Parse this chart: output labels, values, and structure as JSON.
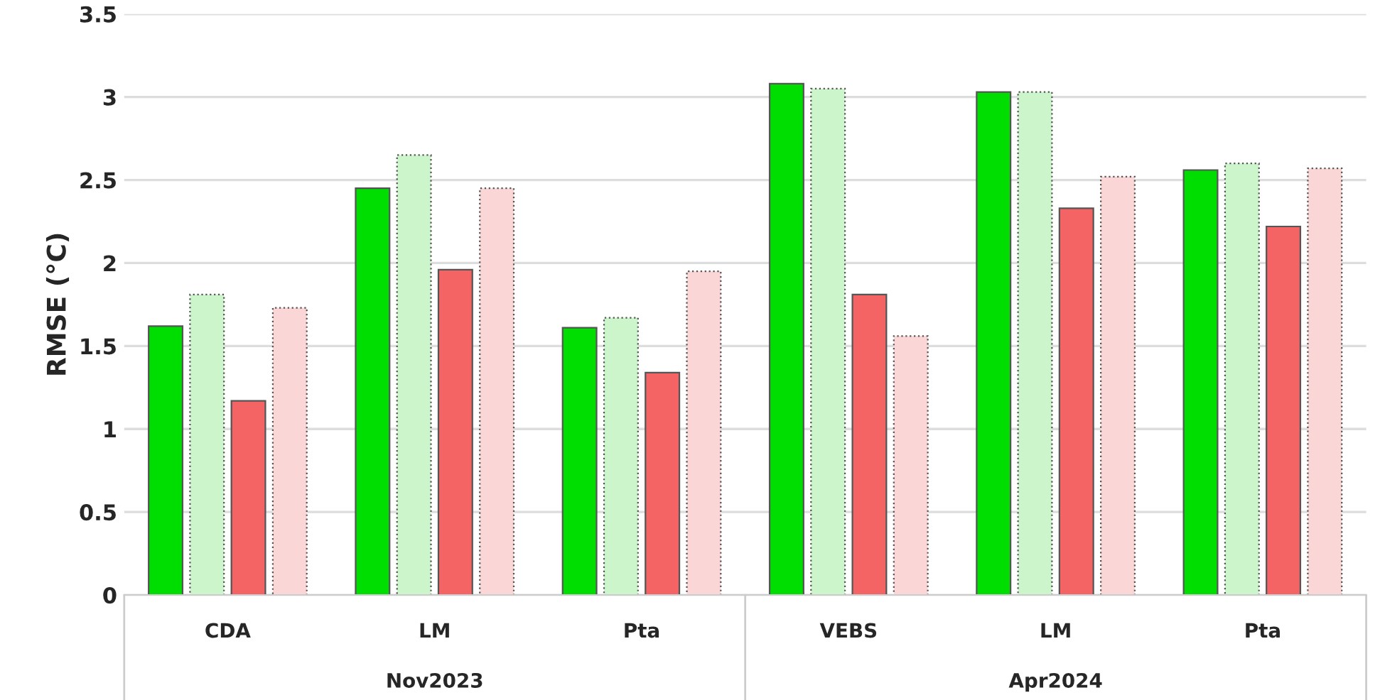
{
  "chart_data": {
    "type": "bar",
    "ylabel": "RMSE (°C)",
    "categories": [
      "CDA",
      "LM",
      "Pta",
      "VEBS",
      "LM",
      "Pta"
    ],
    "series": [
      {
        "color": "#00dd00",
        "values": [
          1.62,
          2.45,
          1.61,
          3.08,
          3.03,
          2.56
        ]
      },
      {
        "color": "#ccf5cc",
        "values": [
          1.81,
          2.65,
          1.67,
          3.05,
          3.03,
          2.6
        ]
      },
      {
        "color": "#f56464",
        "values": [
          1.17,
          1.96,
          1.34,
          1.81,
          2.33,
          2.22
        ]
      },
      {
        "color": "#fbd6d6",
        "values": [
          1.73,
          2.45,
          1.95,
          1.56,
          2.52,
          2.57
        ]
      }
    ],
    "ylim": [
      0,
      3.5
    ],
    "yticks": [
      0,
      0.5,
      1,
      1.5,
      2,
      2.5,
      3,
      3.5
    ],
    "grid": "y",
    "legend": false,
    "annotations": [
      "Nov2023",
      "Apr2024"
    ]
  }
}
